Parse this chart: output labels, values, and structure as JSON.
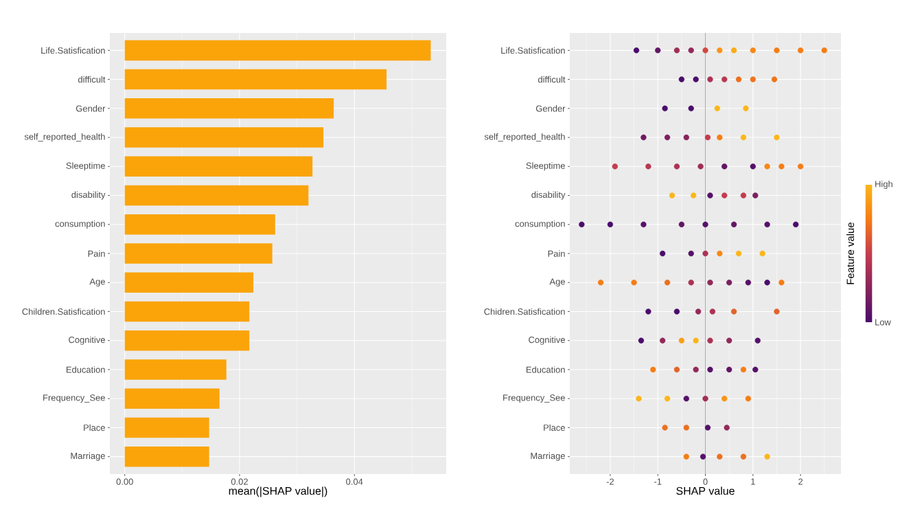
{
  "chart_data": [
    {
      "type": "bar",
      "orientation": "horizontal",
      "xlabel": "mean(|SHAP value|)",
      "color": "#faa40a",
      "grid": true,
      "categories": [
        "Life.Satisfication",
        "difficult",
        "Gender",
        "self_reported_health",
        "Sleeptime",
        "disability",
        "consumption",
        "Pain",
        "Age",
        "Children.Satisfication",
        "Cognitive",
        "Education",
        "Frequency_See",
        "Place",
        "Marriage"
      ],
      "values": [
        0.0533,
        0.0456,
        0.0364,
        0.0346,
        0.0327,
        0.032,
        0.0262,
        0.0257,
        0.0224,
        0.0217,
        0.0217,
        0.0177,
        0.0165,
        0.0147,
        0.0147
      ],
      "xlim": [
        -0.0026,
        0.056
      ],
      "xticks": [
        {
          "value": 0,
          "label": "0.00"
        },
        {
          "value": 0.01,
          "label": null
        },
        {
          "value": 0.02,
          "label": "0.02"
        },
        {
          "value": 0.03,
          "label": null
        },
        {
          "value": 0.04,
          "label": "0.04"
        },
        {
          "value": 0.05,
          "label": null
        }
      ]
    },
    {
      "type": "scatter",
      "orientation": "horizontal",
      "xlabel": "SHAP value",
      "clabel": "Feature value",
      "grid": true,
      "marker": "circle",
      "categories": [
        "Life.Satisfication",
        "difficult",
        "Gender",
        "self_reported_health",
        "Sleeptime",
        "disability",
        "consumption",
        "Pain",
        "Age",
        "Chidren.Satisfication",
        "Cognitive",
        "Education",
        "Frequency_See",
        "Place",
        "Marriage"
      ],
      "xlim": [
        -2.85,
        2.85
      ],
      "xticks": [
        {
          "value": -2.5,
          "label": null
        },
        -2,
        {
          "value": -1.5,
          "label": null
        },
        -1,
        {
          "value": -0.5,
          "label": null
        },
        0,
        {
          "value": 0.5,
          "label": null
        },
        1,
        {
          "value": 1.5,
          "label": null
        },
        2,
        {
          "value": 2.5,
          "label": null
        }
      ],
      "clim": [
        0,
        1
      ],
      "cticks": [
        {
          "value": 0,
          "label": "Low"
        },
        {
          "value": 1,
          "label": "High"
        }
      ],
      "ref_lines": [
        {
          "axis": "x",
          "value": 0,
          "color": "#a0a0a0"
        }
      ],
      "series": [
        {
          "x": [
            "Life.Satisfication",
            "Life.Satisfication",
            "Life.Satisfication",
            "Life.Satisfication",
            "Life.Satisfication",
            "Life.Satisfication",
            "Life.Satisfication",
            "Life.Satisfication",
            "Life.Satisfication",
            "Life.Satisfication",
            "Life.Satisfication"
          ],
          "values": [
            -1.45,
            -1.0,
            -0.6,
            -0.3,
            0,
            0.3,
            0.6,
            1.0,
            1.5,
            2.0,
            2.5
          ],
          "colors": [
            "#4a0c6b",
            "#621665",
            "#9f2e57",
            "#93295a",
            "#ce4943",
            "#f79417",
            "#faab19",
            "#f68816",
            "#f57d15",
            "#f57d15",
            "#f57d15"
          ]
        },
        {
          "x": [
            "difficult",
            "difficult",
            "difficult",
            "difficult",
            "difficult",
            "difficult",
            "difficult"
          ],
          "values": [
            -0.5,
            -0.2,
            0.1,
            0.4,
            0.7,
            1.0,
            1.45
          ],
          "colors": [
            "#4a0c6b",
            "#4a0c6b",
            "#ac3254",
            "#b83751",
            "#eb7020",
            "#ef751c",
            "#ef751c"
          ]
        },
        {
          "x": [
            "Gender",
            "Gender",
            "Gender",
            "Gender"
          ],
          "values": [
            -0.85,
            -0.3,
            0.25,
            0.85
          ],
          "colors": [
            "#4a0c6b",
            "#4a0c6b",
            "#fbb61a",
            "#fbb61a"
          ]
        },
        {
          "x": [
            "self_reported_health",
            "self_reported_health",
            "self_reported_health",
            "self_reported_health",
            "self_reported_health",
            "self_reported_health",
            "self_reported_health"
          ],
          "values": [
            -1.3,
            -0.8,
            -0.4,
            0.05,
            0.3,
            0.8,
            1.5
          ],
          "colors": [
            "#6f1a62",
            "#7b1f5f",
            "#87245d",
            "#c43c4e",
            "#f57d15",
            "#fbb61a",
            "#fbb61a"
          ]
        },
        {
          "x": [
            "Sleeptime",
            "Sleeptime",
            "Sleeptime",
            "Sleeptime",
            "Sleeptime",
            "Sleeptime",
            "Sleeptime",
            "Sleeptime",
            "Sleeptime"
          ],
          "values": [
            -1.9,
            -1.2,
            -0.6,
            -0.1,
            0.4,
            1.0,
            1.3,
            1.6,
            2.0
          ],
          "colors": [
            "#c43c4e",
            "#b83751",
            "#ac3254",
            "#9f2e57",
            "#621665",
            "#561168",
            "#f68816",
            "#f57d15",
            "#f57d15"
          ]
        },
        {
          "x": [
            "disability",
            "disability",
            "disability",
            "disability",
            "disability",
            "disability"
          ],
          "values": [
            -0.7,
            -0.25,
            0.1,
            0.4,
            0.8,
            1.05
          ],
          "colors": [
            "#fbb61a",
            "#fbb61a",
            "#561168",
            "#c43c4e",
            "#c43c4e",
            "#7b1f5f"
          ]
        },
        {
          "x": [
            "consumption",
            "consumption",
            "consumption",
            "consumption",
            "consumption",
            "consumption",
            "consumption",
            "consumption"
          ],
          "values": [
            -2.6,
            -2.0,
            -1.3,
            -0.5,
            0,
            0.6,
            1.3,
            1.9
          ],
          "colors": [
            "#4a0c6b",
            "#4a0c6b",
            "#561168",
            "#621665",
            "#561168",
            "#621665",
            "#561168",
            "#4a0c6b"
          ]
        },
        {
          "x": [
            "Pain",
            "Pain",
            "Pain",
            "Pain",
            "Pain",
            "Pain"
          ],
          "values": [
            -0.9,
            -0.3,
            0,
            0.3,
            0.7,
            1.2
          ],
          "colors": [
            "#4a0c6b",
            "#561168",
            "#ac3254",
            "#f68816",
            "#fbb61a",
            "#fbb61a"
          ]
        },
        {
          "x": [
            "Age",
            "Age",
            "Age",
            "Age",
            "Age",
            "Age",
            "Age",
            "Age",
            "Age"
          ],
          "values": [
            -2.2,
            -1.5,
            -0.8,
            -0.3,
            0.1,
            0.5,
            0.9,
            1.3,
            1.6
          ],
          "colors": [
            "#f57d15",
            "#f57d15",
            "#eb7020",
            "#ac3254",
            "#93295a",
            "#7b1f5f",
            "#561168",
            "#4a0c6b",
            "#f57d15"
          ]
        },
        {
          "x": [
            "Chidren.Satisfication",
            "Chidren.Satisfication",
            "Chidren.Satisfication",
            "Chidren.Satisfication",
            "Chidren.Satisfication",
            "Chidren.Satisfication"
          ],
          "values": [
            -1.2,
            -0.6,
            -0.15,
            0.15,
            0.6,
            1.5
          ],
          "colors": [
            "#4a0c6b",
            "#4a0c6b",
            "#93295a",
            "#ac3254",
            "#e1632c",
            "#e1632c"
          ]
        },
        {
          "x": [
            "Cognitive",
            "Cognitive",
            "Cognitive",
            "Cognitive",
            "Cognitive",
            "Cognitive",
            "Cognitive"
          ],
          "values": [
            -1.35,
            -0.9,
            -0.5,
            -0.2,
            0.1,
            0.5,
            1.1
          ],
          "colors": [
            "#4a0c6b",
            "#93295a",
            "#f99f18",
            "#fbb61a",
            "#ac3254",
            "#93295a",
            "#561168"
          ]
        },
        {
          "x": [
            "Education",
            "Education",
            "Education",
            "Education",
            "Education",
            "Education",
            "Education"
          ],
          "values": [
            -1.1,
            -0.6,
            -0.2,
            0.1,
            0.5,
            0.8,
            1.05
          ],
          "colors": [
            "#f57d15",
            "#e1632c",
            "#93295a",
            "#561168",
            "#621665",
            "#f57d15",
            "#561168"
          ]
        },
        {
          "x": [
            "Frequency_See",
            "Frequency_See",
            "Frequency_See",
            "Frequency_See",
            "Frequency_See",
            "Frequency_See"
          ],
          "values": [
            -1.4,
            -0.8,
            -0.4,
            0,
            0.4,
            0.9
          ],
          "colors": [
            "#fbb61a",
            "#fbb61a",
            "#561168",
            "#9f2e57",
            "#f79417",
            "#f57d15"
          ]
        },
        {
          "x": [
            "Place",
            "Place",
            "Place",
            "Place"
          ],
          "values": [
            -0.85,
            -0.4,
            0.05,
            0.45
          ],
          "colors": [
            "#eb7020",
            "#eb7020",
            "#561168",
            "#93295a"
          ]
        },
        {
          "x": [
            "Marriage",
            "Marriage",
            "Marriage",
            "Marriage",
            "Marriage"
          ],
          "values": [
            -0.4,
            -0.05,
            0.3,
            0.8,
            1.3
          ],
          "colors": [
            "#f57d15",
            "#561168",
            "#eb7020",
            "#eb7020",
            "#fbb61a"
          ]
        }
      ]
    }
  ]
}
